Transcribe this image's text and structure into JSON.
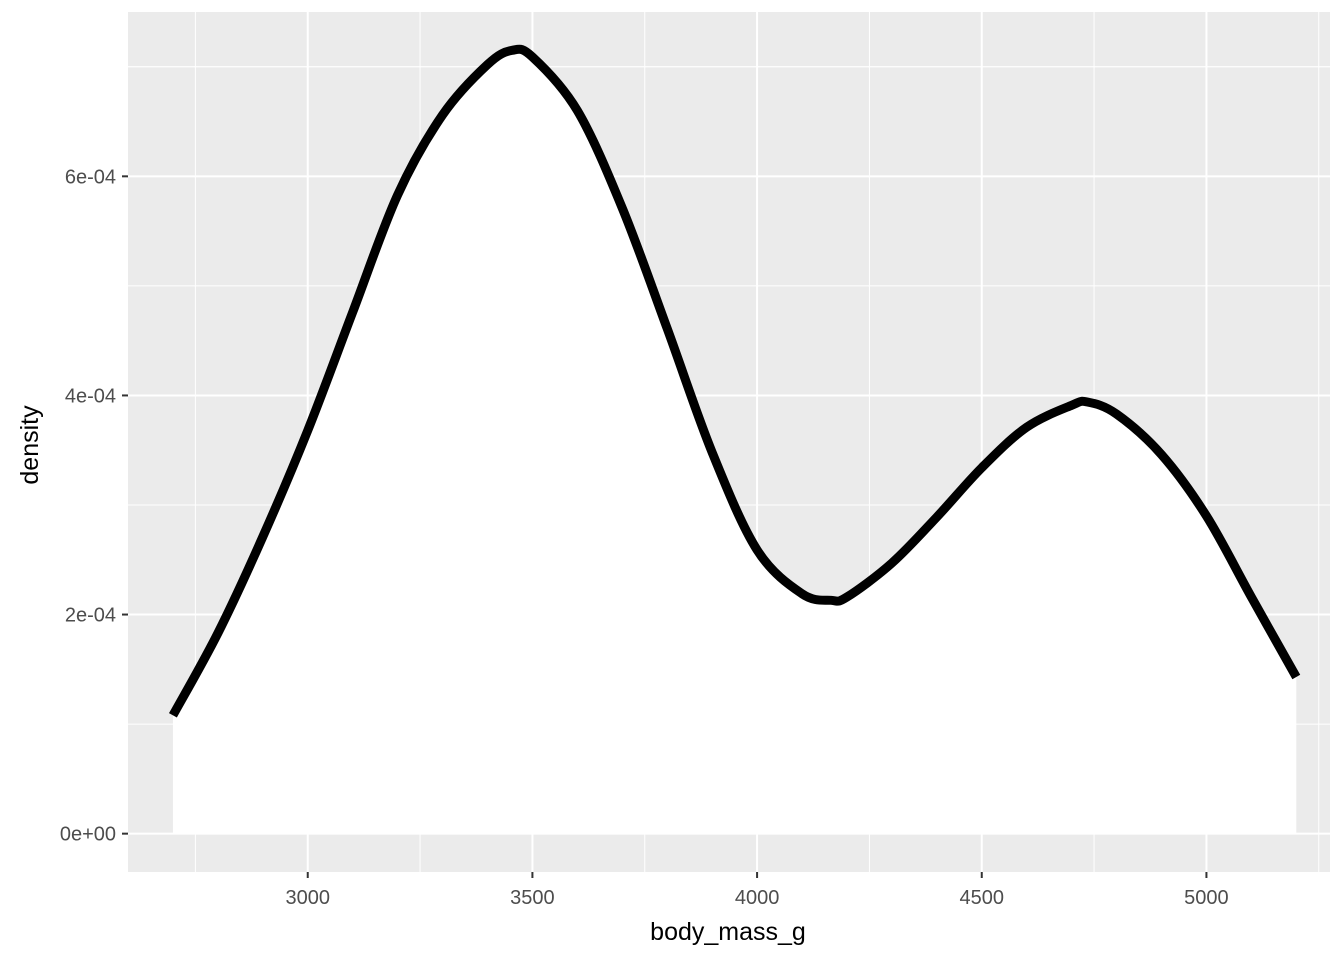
{
  "chart_data": {
    "type": "area",
    "title": "",
    "xlabel": "body_mass_g",
    "ylabel": "density",
    "xlim": [
      2600,
      5275
    ],
    "ylim": [
      -3.5e-05,
      0.00075
    ],
    "grid": true,
    "x_ticks": [
      3000,
      3500,
      4000,
      4500,
      5000
    ],
    "x_tick_labels": [
      "3000",
      "3500",
      "4000",
      "4500",
      "5000"
    ],
    "y_ticks": [
      0,
      0.0002,
      0.0004,
      0.0006
    ],
    "y_tick_labels": [
      "0e+00",
      "2e-04",
      "4e-04",
      "6e-04"
    ],
    "colors": {
      "panel_background": "#ebebeb",
      "grid": "#ffffff",
      "fill": "#ffffff",
      "line": "#000000"
    },
    "series": [
      {
        "x": [
          2700,
          2800,
          2900,
          3000,
          3100,
          3200,
          3300,
          3400,
          3455,
          3500,
          3600,
          3700,
          3800,
          3900,
          4000,
          4100,
          4165,
          4200,
          4300,
          4400,
          4500,
          4600,
          4700,
          4735,
          4800,
          4900,
          5000,
          5100,
          5200
        ],
        "y": [
          0.000108,
          0.000183,
          0.000271,
          0.000368,
          0.000476,
          0.000583,
          0.000656,
          0.000702,
          0.000715,
          0.000709,
          0.00066,
          0.000571,
          0.000461,
          0.000348,
          0.000259,
          0.000219,
          0.000213,
          0.000216,
          0.000247,
          0.000289,
          0.000334,
          0.000371,
          0.000391,
          0.000394,
          0.000383,
          0.000346,
          0.00029,
          0.000216,
          0.000143
        ]
      }
    ]
  }
}
